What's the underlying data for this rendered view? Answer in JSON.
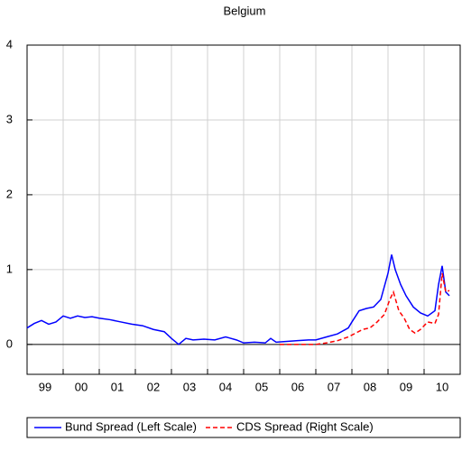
{
  "chart_data": {
    "type": "line",
    "title": "Belgium",
    "xlim": [
      1999,
      2011
    ],
    "xticks": [
      2000,
      2001,
      2002,
      2003,
      2004,
      2005,
      2006,
      2007,
      2008,
      2009,
      2010
    ],
    "year_labels": [
      "99",
      "00",
      "01",
      "02",
      "03",
      "04",
      "05",
      "06",
      "07",
      "08",
      "09",
      "10"
    ],
    "ylim": [
      -0.4,
      4
    ],
    "yticks": [
      0,
      1,
      2,
      3,
      4
    ],
    "grid": true,
    "series": [
      {
        "name": "Bund Spread (Left Scale)",
        "color": "#0000ff",
        "dash": false,
        "x": [
          1999.0,
          1999.2,
          1999.4,
          1999.6,
          1999.8,
          2000.0,
          2000.2,
          2000.4,
          2000.6,
          2000.8,
          2001.0,
          2001.3,
          2001.6,
          2001.9,
          2002.2,
          2002.5,
          2002.8,
          2003.0,
          2003.2,
          2003.4,
          2003.6,
          2003.9,
          2004.2,
          2004.5,
          2004.8,
          2005.0,
          2005.3,
          2005.6,
          2005.75,
          2005.9,
          2006.2,
          2006.5,
          2006.8,
          2007.0,
          2007.3,
          2007.6,
          2007.9,
          2008.0,
          2008.2,
          2008.4,
          2008.6,
          2008.8,
          2009.0,
          2009.1,
          2009.2,
          2009.35,
          2009.5,
          2009.7,
          2009.9,
          2010.1,
          2010.3,
          2010.4,
          2010.5,
          2010.6,
          2010.7
        ],
        "values": [
          0.22,
          0.28,
          0.32,
          0.27,
          0.3,
          0.38,
          0.35,
          0.38,
          0.36,
          0.37,
          0.35,
          0.33,
          0.3,
          0.27,
          0.25,
          0.2,
          0.17,
          0.08,
          0.0,
          0.08,
          0.06,
          0.07,
          0.06,
          0.1,
          0.06,
          0.02,
          0.03,
          0.02,
          0.08,
          0.03,
          0.04,
          0.05,
          0.06,
          0.06,
          0.1,
          0.14,
          0.22,
          0.3,
          0.45,
          0.48,
          0.5,
          0.6,
          0.95,
          1.2,
          1.0,
          0.8,
          0.65,
          0.5,
          0.42,
          0.38,
          0.45,
          0.8,
          1.05,
          0.7,
          0.65
        ]
      },
      {
        "name": "CDS Spread (Right Scale)",
        "color": "#ff0000",
        "dash": true,
        "x": [
          2006.0,
          2006.5,
          2007.0,
          2007.3,
          2007.6,
          2007.9,
          2008.1,
          2008.3,
          2008.5,
          2008.7,
          2008.9,
          2009.05,
          2009.15,
          2009.3,
          2009.45,
          2009.6,
          2009.75,
          2009.9,
          2010.1,
          2010.3,
          2010.4,
          2010.5,
          2010.6,
          2010.7
        ],
        "values": [
          0.0,
          0.0,
          0.0,
          0.02,
          0.05,
          0.1,
          0.15,
          0.2,
          0.22,
          0.3,
          0.4,
          0.6,
          0.7,
          0.45,
          0.35,
          0.2,
          0.15,
          0.2,
          0.3,
          0.28,
          0.4,
          0.95,
          0.7,
          0.72
        ]
      }
    ]
  }
}
